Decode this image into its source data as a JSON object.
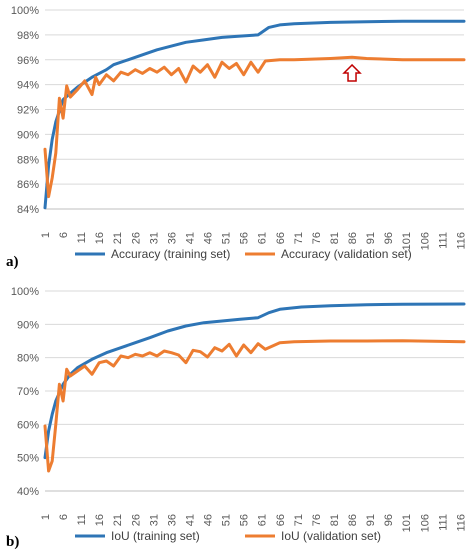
{
  "chart_data": [
    {
      "type": "line",
      "panel_label": "a)",
      "ylim": [
        84,
        100
      ],
      "yticks": [
        84,
        86,
        88,
        90,
        92,
        94,
        96,
        98,
        100
      ],
      "ytick_labels": [
        "84%",
        "86%",
        "88%",
        "90%",
        "92%",
        "94%",
        "96%",
        "98%",
        "100%"
      ],
      "x_range": [
        1,
        117
      ],
      "xticks": [
        1,
        6,
        11,
        16,
        21,
        26,
        31,
        36,
        41,
        46,
        51,
        56,
        61,
        66,
        71,
        76,
        81,
        86,
        91,
        96,
        101,
        106,
        111,
        116
      ],
      "grid": true,
      "legend_position": "bottom",
      "annotation": {
        "type": "arrow-up-marker",
        "x": 86,
        "y": 95.5,
        "color": "#C00000"
      },
      "series": [
        {
          "name": "Accuracy (training set)",
          "color": "#2E75B6",
          "x": [
            1,
            2,
            3,
            4,
            6,
            8,
            10,
            14,
            18,
            20,
            24,
            28,
            32,
            36,
            40,
            45,
            50,
            55,
            60,
            63,
            66,
            70,
            80,
            90,
            100,
            117
          ],
          "y": [
            84.1,
            87.5,
            89.6,
            91.0,
            92.8,
            93.3,
            93.8,
            94.6,
            95.2,
            95.6,
            96.0,
            96.4,
            96.8,
            97.1,
            97.4,
            97.6,
            97.8,
            97.9,
            98.0,
            98.6,
            98.8,
            98.9,
            99.0,
            99.05,
            99.1,
            99.1
          ]
        },
        {
          "name": "Accuracy (validation set)",
          "color": "#ED7D31",
          "x": [
            1,
            2,
            3,
            4,
            5,
            6,
            7,
            8,
            10,
            12,
            14,
            15,
            16,
            18,
            20,
            22,
            24,
            26,
            28,
            30,
            32,
            34,
            36,
            38,
            40,
            42,
            44,
            46,
            48,
            50,
            52,
            54,
            56,
            58,
            60,
            62,
            66,
            70,
            80,
            86,
            90,
            100,
            117
          ],
          "y": [
            88.8,
            85.0,
            86.5,
            88.5,
            92.9,
            91.3,
            93.9,
            93.0,
            93.6,
            94.3,
            93.2,
            94.6,
            94.0,
            94.8,
            94.3,
            95.0,
            94.8,
            95.2,
            94.9,
            95.3,
            95.0,
            95.4,
            94.8,
            95.3,
            94.2,
            95.5,
            95.0,
            95.6,
            94.6,
            95.8,
            95.3,
            95.7,
            94.8,
            95.8,
            95.0,
            95.9,
            96.0,
            96.0,
            96.1,
            96.2,
            96.1,
            96.0,
            96.0
          ]
        }
      ]
    },
    {
      "type": "line",
      "panel_label": "b)",
      "ylim": [
        40,
        100
      ],
      "yticks": [
        40,
        50,
        60,
        70,
        80,
        90,
        100
      ],
      "ytick_labels": [
        "40%",
        "50%",
        "60%",
        "70%",
        "80%",
        "90%",
        "100%"
      ],
      "x_range": [
        1,
        117
      ],
      "xticks": [
        1,
        6,
        11,
        16,
        21,
        26,
        31,
        36,
        41,
        46,
        51,
        56,
        61,
        66,
        71,
        76,
        81,
        86,
        91,
        96,
        101,
        106,
        111,
        116
      ],
      "grid": true,
      "legend_position": "bottom",
      "series": [
        {
          "name": "IoU (training set)",
          "color": "#2E75B6",
          "x": [
            1,
            2,
            3,
            4,
            6,
            8,
            10,
            14,
            18,
            22,
            26,
            30,
            35,
            40,
            45,
            50,
            55,
            60,
            63,
            66,
            72,
            80,
            90,
            100,
            117
          ],
          "y": [
            50.0,
            58.0,
            63.0,
            67.0,
            72.0,
            75.0,
            77.0,
            79.5,
            81.5,
            83.0,
            84.5,
            86.0,
            88.0,
            89.5,
            90.5,
            91.0,
            91.5,
            92.0,
            93.5,
            94.5,
            95.2,
            95.6,
            95.9,
            96.0,
            96.1
          ]
        },
        {
          "name": "IoU (validation set)",
          "color": "#ED7D31",
          "x": [
            1,
            2,
            3,
            4,
            5,
            6,
            7,
            8,
            10,
            12,
            14,
            16,
            18,
            20,
            22,
            24,
            26,
            28,
            30,
            32,
            34,
            36,
            38,
            40,
            42,
            44,
            46,
            48,
            50,
            52,
            54,
            56,
            58,
            60,
            62,
            66,
            70,
            80,
            90,
            100,
            117
          ],
          "y": [
            59.5,
            46.0,
            49.0,
            60.0,
            72.0,
            67.0,
            76.5,
            74.5,
            76.0,
            77.5,
            75.0,
            78.5,
            79.0,
            77.5,
            80.5,
            80.0,
            81.0,
            80.5,
            81.5,
            80.5,
            82.0,
            81.5,
            80.8,
            78.5,
            82.2,
            81.8,
            80.2,
            83.0,
            82.0,
            84.0,
            80.5,
            83.8,
            81.5,
            84.2,
            82.5,
            84.5,
            84.8,
            85.0,
            85.0,
            85.1,
            84.8
          ]
        }
      ]
    }
  ]
}
